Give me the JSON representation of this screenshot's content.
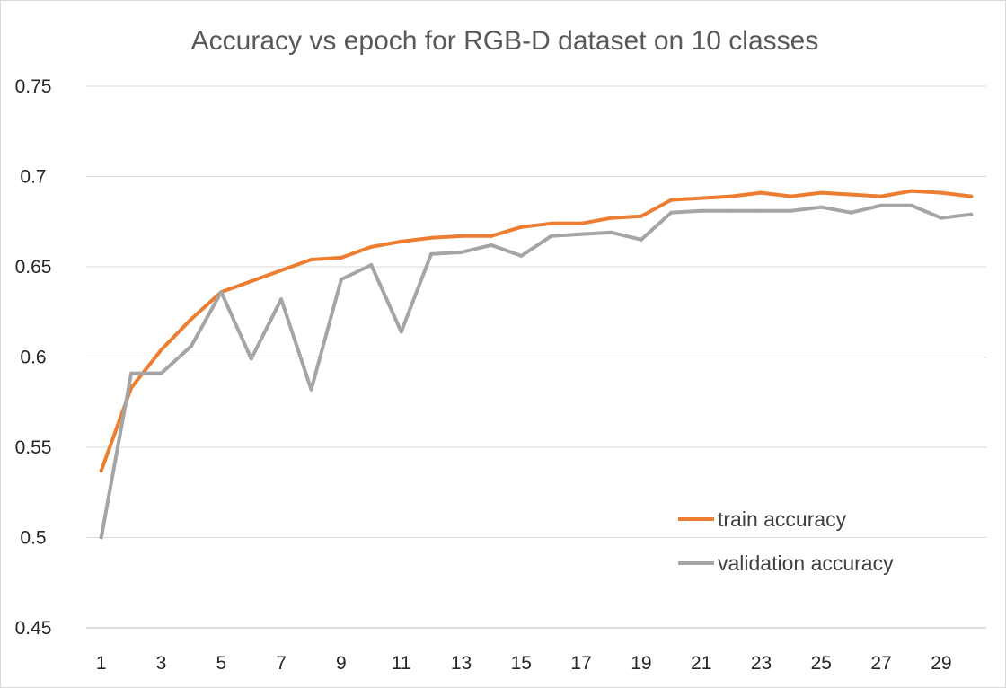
{
  "chart_data": {
    "type": "line",
    "title": "Accuracy vs epoch for RGB-D dataset on 10 classes",
    "xlabel": "",
    "ylabel": "",
    "x": [
      1,
      2,
      3,
      4,
      5,
      6,
      7,
      8,
      9,
      10,
      11,
      12,
      13,
      14,
      15,
      16,
      17,
      18,
      19,
      20,
      21,
      22,
      23,
      24,
      25,
      26,
      27,
      28,
      29,
      30
    ],
    "x_tick_labels": [
      "1",
      "3",
      "5",
      "7",
      "9",
      "11",
      "13",
      "15",
      "17",
      "19",
      "21",
      "23",
      "25",
      "27",
      "29"
    ],
    "y_tick_labels": [
      "0.45",
      "0.5",
      "0.55",
      "0.6",
      "0.65",
      "0.7",
      "0.75"
    ],
    "ylim": [
      0.45,
      0.75
    ],
    "grid": "horizontal",
    "legend_position": "bottom-right",
    "series": [
      {
        "name": "train accuracy",
        "color": "#ED7D31",
        "values": [
          0.537,
          0.583,
          0.604,
          0.621,
          0.636,
          0.642,
          0.648,
          0.654,
          0.655,
          0.661,
          0.664,
          0.666,
          0.667,
          0.667,
          0.672,
          0.674,
          0.674,
          0.677,
          0.678,
          0.687,
          0.688,
          0.689,
          0.691,
          0.689,
          0.691,
          0.69,
          0.689,
          0.692,
          0.691,
          0.689
        ]
      },
      {
        "name": "validation accuracy",
        "color": "#A5A5A5",
        "values": [
          0.5,
          0.591,
          0.591,
          0.606,
          0.636,
          0.599,
          0.632,
          0.582,
          0.643,
          0.651,
          0.614,
          0.657,
          0.658,
          0.662,
          0.656,
          0.667,
          0.668,
          0.669,
          0.665,
          0.68,
          0.681,
          0.681,
          0.681,
          0.681,
          0.683,
          0.68,
          0.684,
          0.684,
          0.677,
          0.679
        ]
      }
    ]
  }
}
